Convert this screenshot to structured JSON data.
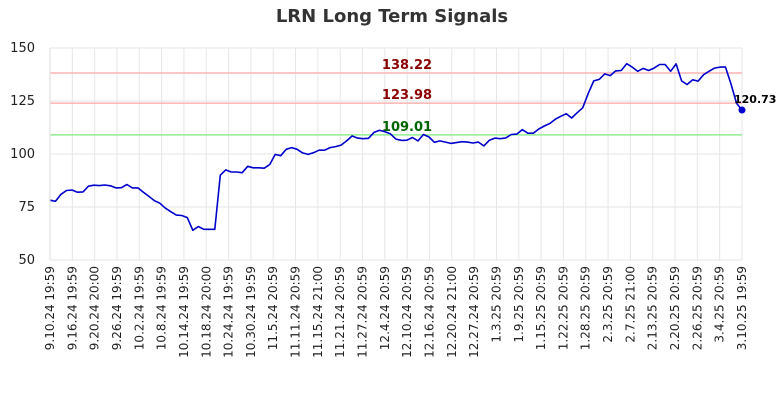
{
  "chart_data": {
    "type": "line",
    "title": "LRN Long Term Signals",
    "xlabel": "",
    "ylabel": "",
    "ylim": [
      50,
      150
    ],
    "yticks": [
      50,
      75,
      100,
      125,
      150
    ],
    "grid": true,
    "x_tick_labels": [
      "9.10.24 19:59",
      "9.16.24 19:59",
      "9.20.24 20:00",
      "9.26.24 19:59",
      "10.2.24 19:59",
      "10.8.24 19:59",
      "10.14.24 19:59",
      "10.18.24 20:00",
      "10.24.24 19:59",
      "10.30.24 19:59",
      "11.5.24 20:59",
      "11.11.24 20:59",
      "11.15.24 21:00",
      "11.21.24 20:59",
      "11.27.24 20:59",
      "12.4.24 20:59",
      "12.10.24 20:59",
      "12.16.24 20:59",
      "12.20.24 21:00",
      "12.27.24 20:59",
      "1.3.25 20:59",
      "1.9.25 20:59",
      "1.15.25 20:59",
      "1.22.25 20:59",
      "1.28.25 20:59",
      "2.3.25 20:59",
      "2.7.25 21:00",
      "2.13.25 20:59",
      "2.20.25 20:59",
      "2.26.25 20:59",
      "3.4.25 20:59",
      "3.10.25 19:59"
    ],
    "series": [
      {
        "color": "#0000cc",
        "values": [
          78.2,
          77.7,
          81.0,
          82.8,
          83.0,
          82.0,
          82.1,
          84.8,
          85.3,
          85.1,
          85.4,
          85.0,
          84.0,
          84.1,
          85.6,
          84.0,
          84.0,
          82.0,
          80.0,
          78.0,
          76.8,
          74.5,
          72.8,
          71.2,
          71.0,
          70.0,
          64.0,
          65.8,
          64.5,
          64.5,
          64.5,
          90.0,
          92.5,
          91.5,
          91.5,
          91.2,
          94.2,
          93.5,
          93.5,
          93.3,
          95.0,
          99.8,
          99.2,
          102.2,
          103.0,
          102.2,
          100.5,
          99.8,
          100.6,
          101.8,
          101.8,
          103.0,
          103.5,
          104.2,
          106.2,
          108.5,
          107.5,
          107.2,
          107.4,
          110.2,
          111.2,
          110.5,
          109.5,
          107.0,
          106.4,
          106.5,
          107.8,
          106.2,
          109.2,
          108.0,
          105.5,
          106.2,
          105.6,
          105.0,
          105.4,
          105.8,
          105.6,
          105.2,
          105.6,
          103.8,
          106.5,
          107.5,
          107.2,
          107.6,
          109.2,
          109.4,
          111.5,
          109.8,
          109.8,
          111.8,
          113.2,
          114.4,
          116.4,
          117.8,
          119.0,
          117.0,
          119.5,
          121.8,
          128.5,
          134.5,
          135.2,
          137.8,
          137.0,
          139.2,
          139.4,
          142.6,
          141.0,
          139.0,
          140.4,
          139.4,
          140.5,
          142.2,
          142.2,
          139.0,
          142.5,
          134.5,
          132.8,
          135.0,
          134.4,
          137.4,
          139.0,
          140.5,
          141.0,
          141.0,
          133.0,
          124.0,
          120.73
        ]
      }
    ],
    "hlines": [
      {
        "value": 138.22,
        "label": "138.22",
        "line_color": "#ffb3b3",
        "label_color": "#8b0000"
      },
      {
        "value": 123.98,
        "label": "123.98",
        "line_color": "#ffb3b3",
        "label_color": "#8b0000"
      },
      {
        "value": 109.01,
        "label": "109.01",
        "line_color": "#90ee90",
        "label_color": "#006400"
      }
    ],
    "last_value": {
      "value": 120.73,
      "label": "120.73",
      "color": "#0000cc"
    }
  }
}
